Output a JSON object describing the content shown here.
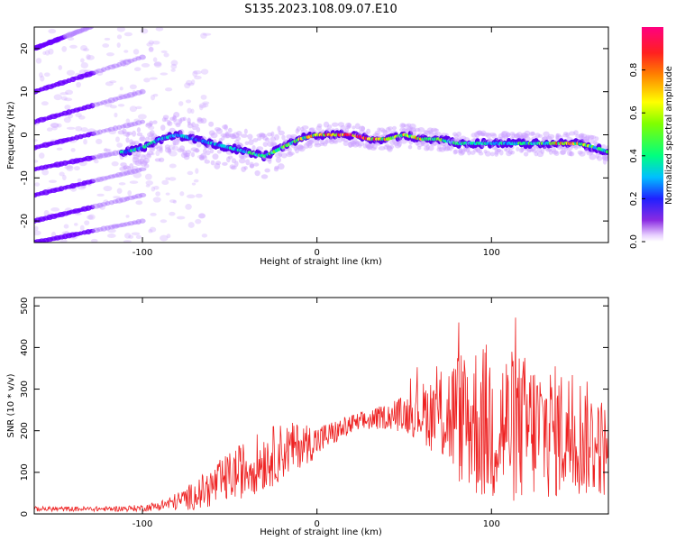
{
  "title": "S135.2023.108.09.07.E10",
  "colors": {
    "snr_line": "#ee2222",
    "spectro_low": "#d9b3ff",
    "spectro_mid": "#6a00ff",
    "background": "#ffffff"
  },
  "chart_data": [
    {
      "type": "heatmap",
      "name": "spectrogram",
      "xlabel": "Height of straight line (km)",
      "ylabel": "Frequency (Hz)",
      "xlim": [
        -162,
        167
      ],
      "ylim": [
        -25,
        25
      ],
      "xticks": [
        -100,
        0,
        100
      ],
      "xtick_labels": [
        "-100",
        "0",
        "100"
      ],
      "yticks": [
        -20,
        -10,
        0,
        10,
        20
      ],
      "ytick_labels": [
        "-20",
        "-10",
        "0",
        "10",
        "20"
      ],
      "colorbar": {
        "label": "Normalized spectral amplitude",
        "range": [
          0,
          1
        ],
        "ticks": [
          0.0,
          0.2,
          0.4,
          0.6,
          0.8
        ],
        "tick_labels": [
          "0.0",
          "0.2",
          "0.4",
          "0.6",
          "0.8"
        ]
      },
      "ridge": {
        "x": [
          -110,
          -100,
          -90,
          -80,
          -70,
          -60,
          -50,
          -40,
          -30,
          -20,
          -10,
          0,
          10,
          20,
          30,
          40,
          50,
          60,
          70,
          80,
          90,
          100,
          110,
          120,
          130,
          140,
          150,
          160,
          167
        ],
        "y": [
          -4,
          -3,
          -1,
          0,
          -1,
          -2,
          -3,
          -4,
          -5,
          -3,
          -1,
          0,
          0,
          0,
          -1,
          -1,
          0,
          -1,
          -1,
          -2,
          -2,
          -2,
          -2,
          -2,
          -2,
          -2,
          -2,
          -3,
          -4
        ],
        "amplitude": [
          0.35,
          0.4,
          0.35,
          0.35,
          0.3,
          0.3,
          0.35,
          0.4,
          0.45,
          0.5,
          0.6,
          0.7,
          0.9,
          0.95,
          0.85,
          0.7,
          0.6,
          0.75,
          0.5,
          0.45,
          0.4,
          0.35,
          0.4,
          0.45,
          0.5,
          0.8,
          0.7,
          0.45,
          0.4
        ]
      },
      "diagonal_bands": [
        {
          "x_start": -162,
          "y_start": 20,
          "x_end": -130,
          "y_end": 25
        },
        {
          "x_start": -162,
          "y_start": 10,
          "x_end": -100,
          "y_end": 18
        },
        {
          "x_start": -162,
          "y_start": 3,
          "x_end": -100,
          "y_end": 10
        },
        {
          "x_start": -162,
          "y_start": -3,
          "x_end": -100,
          "y_end": 3
        },
        {
          "x_start": -162,
          "y_start": -8,
          "x_end": -100,
          "y_end": -3
        },
        {
          "x_start": -162,
          "y_start": -14,
          "x_end": -100,
          "y_end": -8
        },
        {
          "x_start": -162,
          "y_start": -20,
          "x_end": -100,
          "y_end": -14
        },
        {
          "x_start": -162,
          "y_start": -25,
          "x_end": -100,
          "y_end": -20
        }
      ]
    },
    {
      "type": "line",
      "name": "snr",
      "xlabel": "Height of straight line (km)",
      "ylabel": "SNR (10 * v/v)",
      "xlim": [
        -162,
        167
      ],
      "ylim": [
        0,
        520
      ],
      "xticks": [
        -100,
        0,
        100
      ],
      "xtick_labels": [
        "-100",
        "0",
        "100"
      ],
      "yticks": [
        0,
        100,
        200,
        300,
        400,
        500
      ],
      "ytick_labels": [
        "0",
        "100",
        "200",
        "300",
        "400",
        "500"
      ],
      "envelope": {
        "x": [
          -162,
          -140,
          -120,
          -100,
          -90,
          -80,
          -70,
          -60,
          -50,
          -40,
          -30,
          -20,
          -10,
          0,
          10,
          20,
          30,
          40,
          50,
          60,
          70,
          80,
          90,
          100,
          110,
          120,
          130,
          140,
          150,
          160,
          167
        ],
        "center": [
          12,
          12,
          12,
          14,
          20,
          30,
          45,
          65,
          90,
          110,
          130,
          150,
          165,
          175,
          195,
          215,
          225,
          235,
          240,
          245,
          240,
          235,
          225,
          215,
          210,
          205,
          200,
          195,
          190,
          170,
          150
        ],
        "amplitude": [
          6,
          6,
          6,
          8,
          12,
          22,
          35,
          50,
          60,
          70,
          75,
          70,
          55,
          40,
          30,
          25,
          25,
          30,
          45,
          70,
          110,
          160,
          190,
          200,
          190,
          180,
          170,
          160,
          150,
          130,
          110
        ]
      }
    }
  ]
}
